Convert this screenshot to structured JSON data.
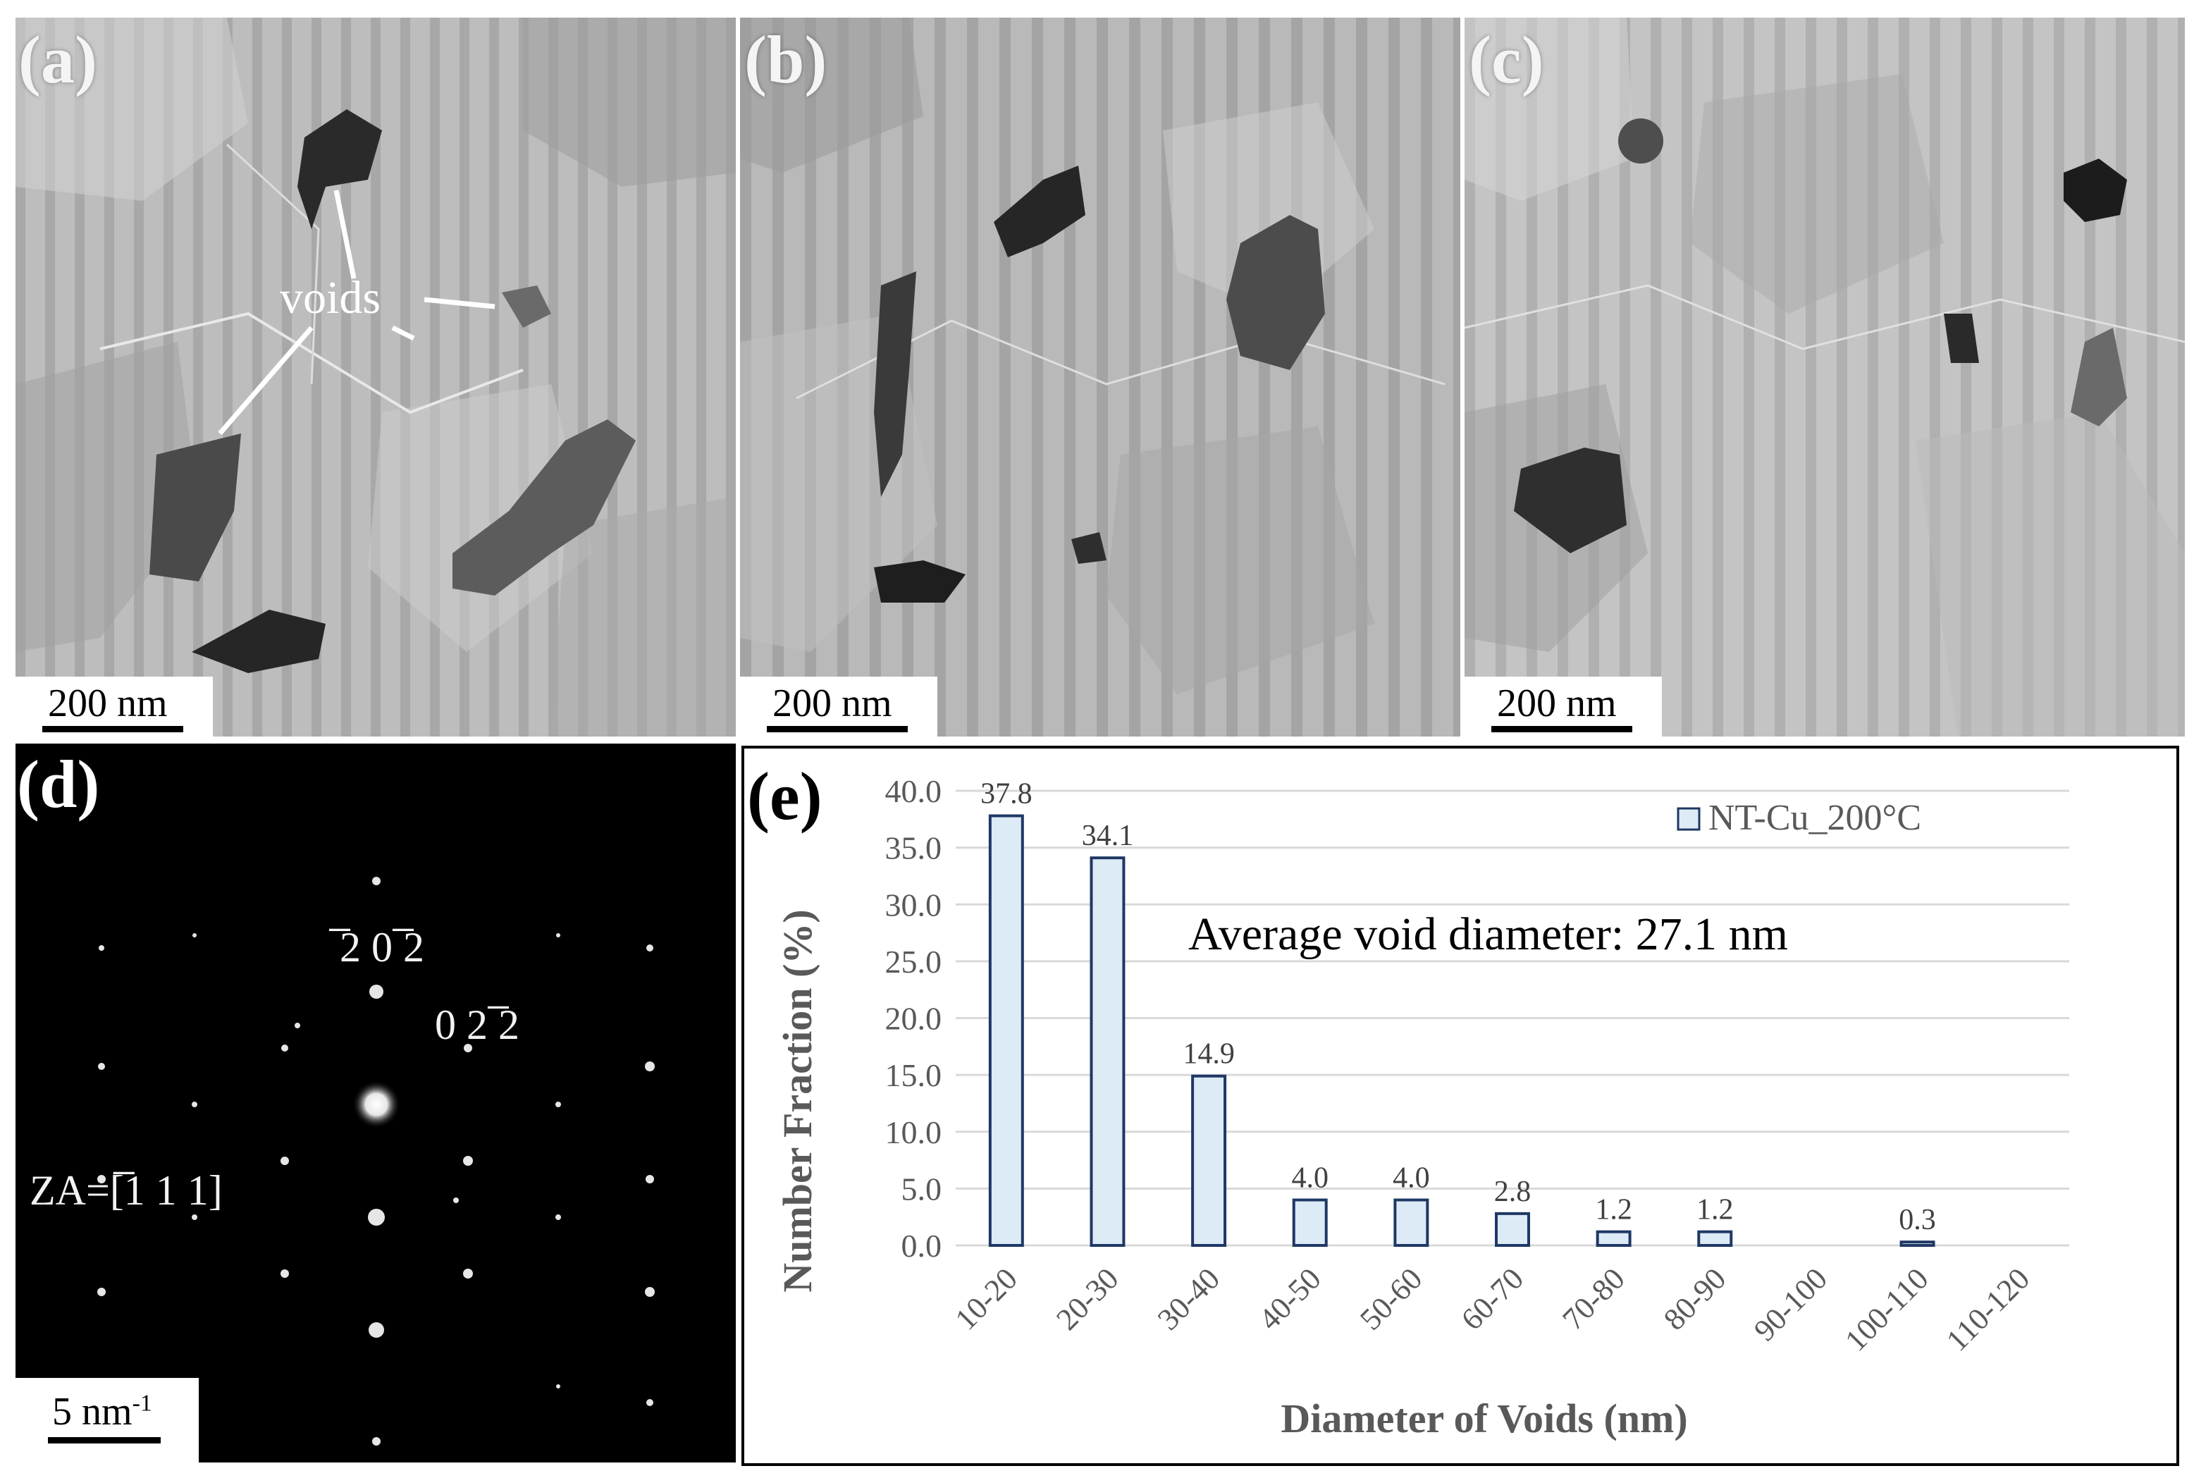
{
  "panels": {
    "a": {
      "label": "(a)",
      "scale_label": "200 nm",
      "annotation": "voids"
    },
    "b": {
      "label": "(b)",
      "scale_label": "200 nm"
    },
    "c": {
      "label": "(c)",
      "scale_label": "200 nm"
    },
    "d": {
      "label": "(d)",
      "scale_label": "5 nm",
      "scale_sup": "-1",
      "spot_labels": [
        "̅2 0 ̅2",
        "0 2 ̅2"
      ],
      "zone_axis": "ZA=[̅1 1 1]"
    },
    "e": {
      "label": "(e)"
    }
  },
  "chart_data": {
    "type": "bar",
    "title": "",
    "xlabel": "Diameter of Voids (nm)",
    "ylabel": "Number Fraction (%)",
    "categories": [
      "10-20",
      "20-30",
      "30-40",
      "40-50",
      "50-60",
      "60-70",
      "70-80",
      "80-90",
      "90-100",
      "100-110",
      "110-120"
    ],
    "series": [
      {
        "name": "NT-Cu_200°C",
        "values": [
          37.8,
          34.1,
          14.9,
          4.0,
          4.0,
          2.8,
          1.2,
          1.2,
          0,
          0.3,
          0
        ]
      }
    ],
    "data_labels": [
      "37.8",
      "34.1",
      "14.9",
      "4.0",
      "4.0",
      "2.8",
      "1.2",
      "1.2",
      "",
      "0.3",
      ""
    ],
    "yticks": [
      "0.0",
      "5.0",
      "10.0",
      "15.0",
      "20.0",
      "25.0",
      "30.0",
      "35.0",
      "40.0"
    ],
    "ylim": [
      0,
      40
    ],
    "grid": true,
    "legend": "top-right",
    "annotation": "Average void diameter: 27.1 nm",
    "colors": {
      "bar_fill": "#ddebf7",
      "bar_edge": "#1f3864",
      "grid": "#d9d9d9",
      "text": "#595959"
    }
  }
}
